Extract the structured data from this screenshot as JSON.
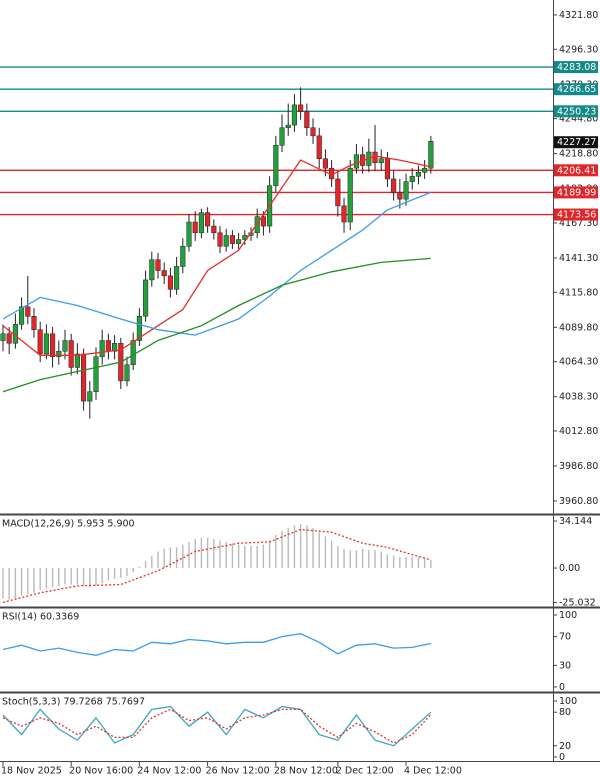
{
  "chart_data": [
    {
      "type": "candlestick",
      "up_color": "#23a03c",
      "down_color": "#e0262b",
      "wick_color": "#222",
      "xlim": [
        -0.48,
        88.7
      ],
      "ylim": [
        3951.9,
        4332.9
      ],
      "yticks": [
        {
          "value": 4321.8,
          "label": "4321.80"
        },
        {
          "value": 4296.3,
          "label": "4296.30"
        },
        {
          "value": 4270.3,
          "label": "4270.30"
        },
        {
          "value": 4244.8,
          "label": "4244.80"
        },
        {
          "value": 4218.8,
          "label": "4218.80"
        },
        {
          "value": 4192.8,
          "label": "4192.80"
        },
        {
          "value": 4167.3,
          "label": "4167.30"
        },
        {
          "value": 4141.3,
          "label": "4141.30"
        },
        {
          "value": 4115.8,
          "label": "4115.80"
        },
        {
          "value": 4089.8,
          "label": "4089.80"
        },
        {
          "value": 4064.3,
          "label": "4064.30"
        },
        {
          "value": 4038.3,
          "label": "4038.30"
        },
        {
          "value": 4012.8,
          "label": "4012.80"
        },
        {
          "value": 3986.8,
          "label": "3986.80"
        },
        {
          "value": 3960.8,
          "label": "3960.80"
        }
      ],
      "xticks": [
        {
          "value": 0,
          "label": "18 Nov 2025"
        },
        {
          "value": 11,
          "label": "20 Nov 16:00"
        },
        {
          "value": 22,
          "label": "24 Nov 12:00"
        },
        {
          "value": 33,
          "label": "26 Nov 12:00"
        },
        {
          "value": 44,
          "label": "28 Nov 12:00"
        },
        {
          "value": 54,
          "label": "2 Dec 12:00"
        },
        {
          "value": 65,
          "label": "4 Dec 12:00"
        }
      ],
      "open": [
        4080,
        4085,
        4078,
        4092,
        4105,
        4098,
        4088,
        4070,
        4085,
        4068,
        4072,
        4080,
        4060,
        4070,
        4035,
        4042,
        4068,
        4080,
        4072,
        4078,
        4050,
        4062,
        4080,
        4098,
        4125,
        4140,
        4132,
        4128,
        4118,
        4135,
        4150,
        4168,
        4160,
        4175,
        4165,
        4160,
        4150,
        4158,
        4152,
        4155,
        4158,
        4160,
        4172,
        4165,
        4195,
        4225,
        4238,
        4240,
        4255,
        4250,
        4238,
        4232,
        4215,
        4208,
        4200,
        4180,
        4168,
        4208,
        4218,
        4210,
        4220,
        4212,
        4215,
        4200,
        4190,
        4185,
        4198,
        4202,
        4205,
        4208
      ],
      "high": [
        4092,
        4090,
        4100,
        4112,
        4128,
        4104,
        4094,
        4092,
        4090,
        4080,
        4088,
        4085,
        4078,
        4074,
        4050,
        4075,
        4088,
        4085,
        4084,
        4082,
        4068,
        4086,
        4104,
        4132,
        4146,
        4145,
        4138,
        4134,
        4142,
        4156,
        4174,
        4176,
        4178,
        4179,
        4170,
        4165,
        4163,
        4162,
        4160,
        4162,
        4164,
        4178,
        4176,
        4202,
        4232,
        4248,
        4256,
        4263,
        4268,
        4256,
        4245,
        4238,
        4222,
        4214,
        4206,
        4186,
        4214,
        4226,
        4224,
        4230,
        4240,
        4222,
        4220,
        4206,
        4200,
        4204,
        4208,
        4210,
        4214,
        4232
      ],
      "low": [
        4072,
        4070,
        4074,
        4088,
        4092,
        4082,
        4064,
        4066,
        4060,
        4062,
        4066,
        4054,
        4055,
        4028,
        4022,
        4036,
        4062,
        4066,
        4066,
        4044,
        4046,
        4058,
        4076,
        4094,
        4120,
        4126,
        4122,
        4112,
        4114,
        4130,
        4146,
        4154,
        4156,
        4160,
        4155,
        4145,
        4146,
        4148,
        4148,
        4151,
        4154,
        4156,
        4158,
        4160,
        4190,
        4220,
        4232,
        4235,
        4244,
        4232,
        4226,
        4208,
        4202,
        4194,
        4172,
        4160,
        4162,
        4204,
        4204,
        4205,
        4206,
        4206,
        4194,
        4184,
        4178,
        4180,
        4192,
        4196,
        4200,
        4204
      ],
      "close": [
        4085,
        4078,
        4092,
        4105,
        4098,
        4088,
        4070,
        4085,
        4068,
        4072,
        4080,
        4060,
        4070,
        4035,
        4042,
        4068,
        4080,
        4072,
        4078,
        4050,
        4062,
        4080,
        4098,
        4125,
        4140,
        4132,
        4128,
        4118,
        4135,
        4150,
        4168,
        4160,
        4175,
        4165,
        4160,
        4150,
        4158,
        4152,
        4155,
        4158,
        4160,
        4172,
        4165,
        4195,
        4225,
        4238,
        4240,
        4255,
        4250,
        4238,
        4232,
        4215,
        4208,
        4200,
        4180,
        4168,
        4208,
        4218,
        4210,
        4220,
        4212,
        4215,
        4200,
        4190,
        4185,
        4198,
        4202,
        4205,
        4208,
        4228
      ],
      "lines": [
        {
          "color": "#e5302a",
          "x": [
            0,
            6,
            12,
            19,
            24,
            29,
            33,
            38,
            43,
            48,
            53,
            56,
            60,
            64,
            69
          ],
          "values": [
            4091,
            4069,
            4069,
            4073,
            4088,
            4103,
            4132,
            4147,
            4180,
            4214,
            4203,
            4210,
            4217,
            4214,
            4209
          ]
        },
        {
          "color": "#3d9be9",
          "x": [
            0,
            6,
            12,
            19,
            25,
            31,
            38,
            43,
            48,
            53,
            58,
            62,
            69
          ],
          "values": [
            4096,
            4112,
            4106,
            4096,
            4088,
            4084,
            4096,
            4113,
            4132,
            4147,
            4162,
            4177,
            4190
          ]
        },
        {
          "color": "#1f8f23",
          "x": [
            0,
            6,
            12,
            19,
            25,
            32,
            38,
            45,
            53,
            61,
            69
          ],
          "values": [
            4042,
            4051,
            4057,
            4064,
            4080,
            4091,
            4106,
            4121,
            4131,
            4138,
            4141
          ]
        }
      ],
      "levels": [
        {
          "value": 4283.08,
          "color": "#14898a"
        },
        {
          "value": 4266.65,
          "color": "#14898a"
        },
        {
          "value": 4250.23,
          "color": "#14898a"
        },
        {
          "value": 4206.41,
          "color": "#e0262b"
        },
        {
          "value": 4189.99,
          "color": "#e0262b"
        },
        {
          "value": 4173.56,
          "color": "#e0262b"
        }
      ],
      "last": 4227.27
    },
    {
      "type": "macd",
      "title": "MACD(12,26,9) 5.953 5.900",
      "ylim": [
        -27.6,
        37.8
      ],
      "yticks": [
        34.144,
        {
          "value": 0,
          "label": "0.00"
        },
        -25.032
      ],
      "histogram": {
        "color": "#b9b9b9",
        "values": [
          -22,
          -23,
          -22,
          -20,
          -19,
          -18,
          -16,
          -15,
          -14,
          -13,
          -12,
          -12,
          -12,
          -13,
          -14,
          -13,
          -11,
          -9,
          -8,
          -7,
          -6,
          -3,
          1,
          5,
          9,
          12,
          14,
          15,
          15,
          17,
          19,
          21,
          22,
          22,
          21,
          20,
          19,
          18,
          17,
          16,
          16,
          16,
          17,
          20,
          24,
          27,
          29,
          31,
          32,
          31,
          29,
          26,
          23,
          20,
          16,
          14,
          13,
          13,
          14,
          13,
          13,
          12,
          10,
          9,
          8,
          8,
          8,
          8,
          7,
          6
        ]
      },
      "lines": [
        {
          "color": "#e5302a",
          "dashed": true,
          "x": [
            0,
            6,
            12,
            19,
            25,
            31,
            38,
            43,
            48,
            53,
            58,
            62,
            69
          ],
          "values": [
            -25,
            -18,
            -13,
            -12,
            -2,
            12,
            18,
            19,
            28,
            26,
            18,
            15,
            5.9
          ]
        }
      ]
    },
    {
      "type": "rsi",
      "title": "RSI(14) 60.3369",
      "ylim": [
        -5.6,
        108.3
      ],
      "yticks": [
        100,
        70,
        30,
        0
      ],
      "lines": [
        {
          "color": "#3d9be9",
          "x": [
            0,
            3,
            6,
            9,
            12,
            15,
            18,
            21,
            24,
            27,
            30,
            33,
            36,
            39,
            42,
            45,
            48,
            51,
            54,
            57,
            60,
            63,
            66,
            69
          ],
          "values": [
            52,
            58,
            50,
            54,
            48,
            44,
            52,
            50,
            62,
            60,
            66,
            64,
            60,
            62,
            62,
            70,
            74,
            62,
            46,
            58,
            60,
            54,
            55,
            60.3369
          ]
        }
      ]
    },
    {
      "type": "stoch",
      "title": "Stoch(5,3,3) 79.7268 75.7697",
      "ylim": [
        -5.4,
        112.5
      ],
      "yticks": [
        100,
        80,
        20,
        0
      ],
      "lines": [
        {
          "color": "#3aa7c4",
          "x": [
            0,
            3,
            6,
            9,
            12,
            15,
            18,
            21,
            24,
            27,
            30,
            33,
            36,
            39,
            42,
            45,
            48,
            51,
            54,
            57,
            60,
            63,
            66,
            69
          ],
          "values": [
            75,
            40,
            85,
            50,
            30,
            70,
            25,
            40,
            85,
            90,
            55,
            80,
            40,
            85,
            70,
            90,
            85,
            40,
            30,
            75,
            30,
            20,
            50,
            79.7268
          ]
        },
        {
          "color": "#e5302a",
          "dashed": true,
          "x": [
            0,
            3,
            6,
            9,
            12,
            15,
            18,
            21,
            24,
            27,
            30,
            33,
            36,
            39,
            42,
            45,
            48,
            51,
            54,
            57,
            60,
            63,
            66,
            69
          ],
          "values": [
            70,
            55,
            70,
            60,
            40,
            55,
            35,
            35,
            70,
            85,
            65,
            70,
            50,
            70,
            75,
            85,
            85,
            55,
            35,
            60,
            45,
            25,
            40,
            75.7697
          ]
        }
      ]
    }
  ]
}
